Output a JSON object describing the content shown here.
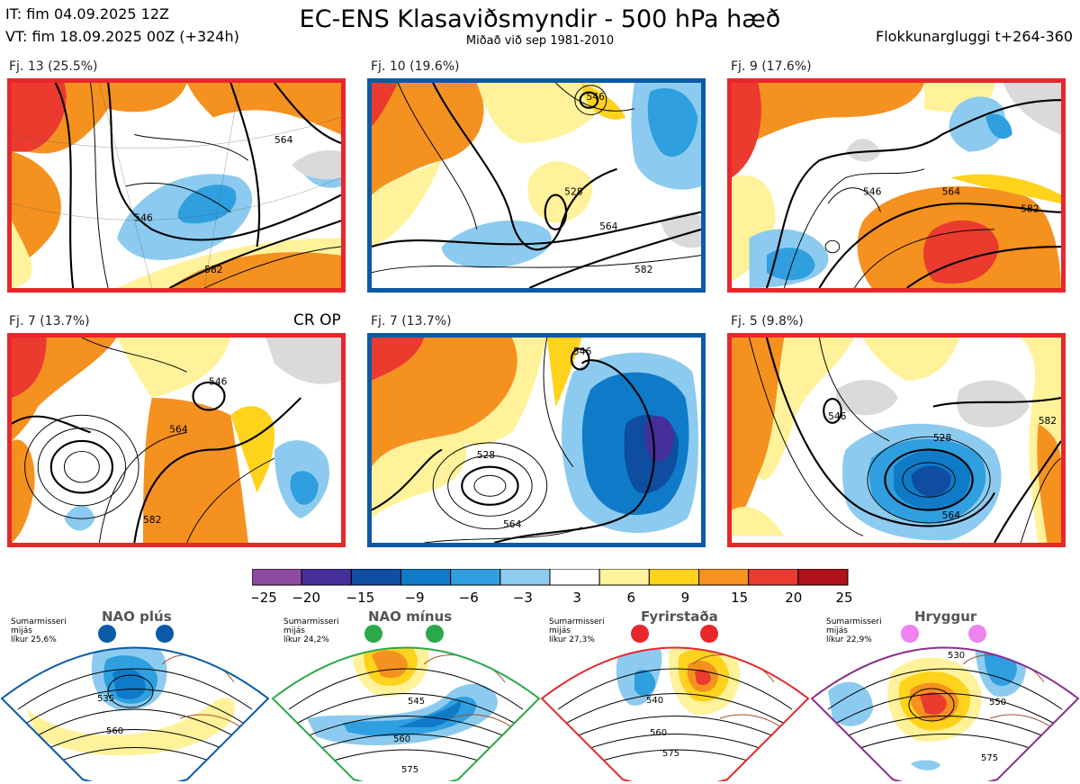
{
  "header": {
    "it": "IT: fim 04.09.2025 12Z",
    "vt": "VT: fim 18.09.2025 00Z  (+324h)",
    "title": "EC-ENS Klasaviðsmyndir - 500 hPa hæð",
    "subtitle": "Miðað við sep 1981-2010",
    "window": "Flokkunargluggi t+264-360",
    "op_label": "CR OP"
  },
  "colors": {
    "red_frame": "#e8262b",
    "blue_frame": "#0a5aa8",
    "green_frame": "#2aa84a",
    "purple_frame": "#8b2c90"
  },
  "chart_data": {
    "type": "heatmap",
    "colorbar": {
      "ticks": [
        "−25",
        "−20",
        "−15",
        "−9",
        "−6",
        "−3",
        "3",
        "6",
        "9",
        "15",
        "20",
        "25"
      ],
      "colors": [
        "#8e4aa1",
        "#45309a",
        "#0e4da0",
        "#0f7bc8",
        "#2f9fe0",
        "#8ccbef",
        "#ffffff",
        "#fff29a",
        "#ffd21c",
        "#f5911f",
        "#ea3b2e",
        "#b0111a"
      ]
    },
    "clusters": [
      {
        "label": "Fj. 13 (25.5%)",
        "frame": "red",
        "contours": [
          "546",
          "564",
          "582"
        ]
      },
      {
        "label": "Fj. 10 (19.6%)",
        "frame": "blue",
        "contours": [
          "528",
          "546",
          "564",
          "582"
        ]
      },
      {
        "label": "Fj. 9 (17.6%)",
        "frame": "red",
        "contours": [
          "546",
          "564",
          "582"
        ]
      },
      {
        "label": "Fj. 7 (13.7%)",
        "frame": "red",
        "contours": [
          "546",
          "564",
          "582"
        ]
      },
      {
        "label": "Fj. 7 (13.7%)",
        "frame": "blue",
        "contours": [
          "528",
          "546",
          "564"
        ]
      },
      {
        "label": "Fj. 5 (9.8%)",
        "frame": "red",
        "contours": [
          "528",
          "546",
          "564",
          "582"
        ]
      }
    ],
    "regimes": [
      {
        "name": "NAO plús",
        "info": "Sumarmisseri\nmijás\nlíkur 25,6%",
        "contours": [
          "535",
          "560"
        ]
      },
      {
        "name": "NAO mínus",
        "info": "Sumarmisseri\nmijás\nlíkur 24,2%",
        "contours": [
          "545",
          "560",
          "575"
        ]
      },
      {
        "name": "Fyrirstaða",
        "info": "Sumarmisseri\nmijás\nlíkur 27,3%",
        "contours": [
          "540",
          "560",
          "575"
        ]
      },
      {
        "name": "Hryggur",
        "info": "Sumarmisseri\nmijás\nlíkur 22,9%",
        "contours": [
          "530",
          "550",
          "575"
        ]
      }
    ]
  }
}
